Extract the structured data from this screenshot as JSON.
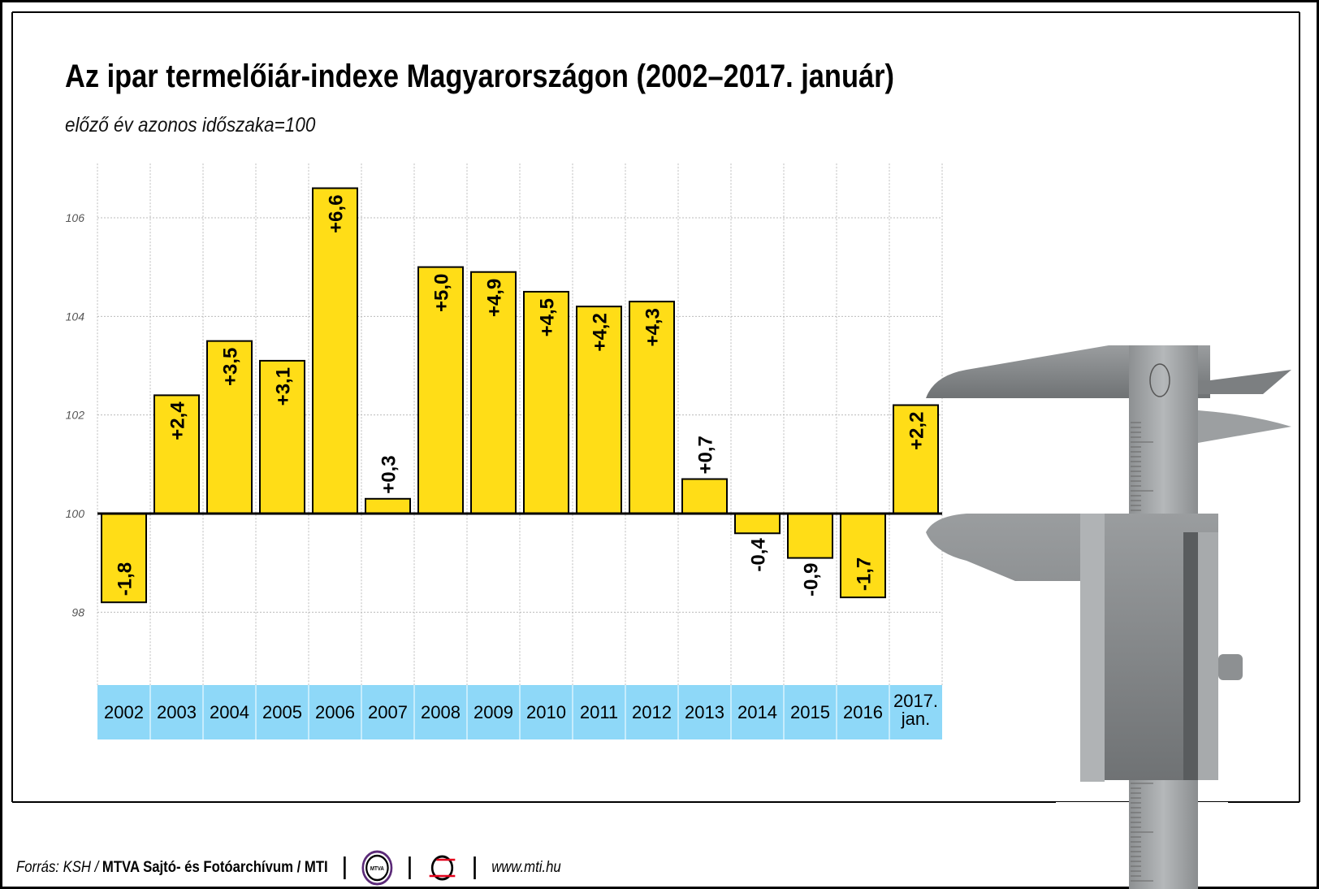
{
  "chart_data": {
    "type": "bar",
    "title": "Az ipar termelőiár-indexe Magyarországon (2002–2017. január)",
    "subtitle": "előző év azonos időszaka=100",
    "categories": [
      "2002",
      "2003",
      "2004",
      "2005",
      "2006",
      "2007",
      "2008",
      "2009",
      "2010",
      "2011",
      "2012",
      "2013",
      "2014",
      "2015",
      "2016",
      "2017. jan."
    ],
    "values": [
      98.2,
      102.4,
      103.5,
      103.1,
      106.6,
      100.3,
      105.0,
      104.9,
      104.5,
      104.2,
      104.3,
      100.7,
      99.6,
      99.1,
      98.3,
      102.2
    ],
    "data_labels": [
      "-1,8",
      "+2,4",
      "+3,5",
      "+3,1",
      "+6,6",
      "+0,3",
      "+5,0",
      "+4,9",
      "+4,5",
      "+4,2",
      "+4,3",
      "+0,7",
      "-0,4",
      "-0,9",
      "-1,7",
      "+2,2"
    ],
    "baseline": 100,
    "yticks": [
      "98",
      "100",
      "102",
      "104",
      "106"
    ],
    "ylim": [
      96.5,
      107.1
    ],
    "grid": true,
    "colors": {
      "bar": "#FFDD17",
      "category_strip": "#8ED8F8",
      "grid": "#bbbbbb"
    }
  },
  "footer": {
    "source_prefix": "Forrás: KSH / ",
    "source_bold": "MTVA Sajtó- és Fotóarchívum / MTI",
    "logo1": "MTVA",
    "url": "www.mti.hu"
  }
}
